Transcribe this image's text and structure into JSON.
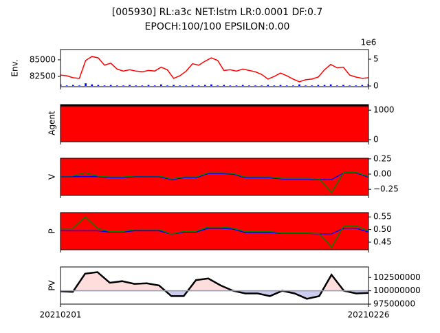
{
  "title": [
    "[005930] RL:a3c NET:lstm LR:0.0001 DF:0.7",
    "EPOCH:100/100 EPSILON:0.00"
  ],
  "chart_data": [
    {
      "type": "line",
      "ylabel": "Env.",
      "ytick_side": "left",
      "ylim": [
        80950,
        86550
      ],
      "yticks": [
        82500,
        85000
      ],
      "y2lim": [
        -0.13,
        6.8
      ],
      "y2ticks": [
        0,
        5
      ],
      "y2_offset_label": "1e6",
      "series": [
        {
          "name": "close",
          "kind": "line",
          "color": "#ff0000",
          "values": [
            82700,
            82600,
            82300,
            82200,
            84900,
            85500,
            85300,
            84200,
            84500,
            83600,
            83300,
            83500,
            83300,
            83200,
            83400,
            83300,
            83900,
            83500,
            82200,
            82600,
            83300,
            84400,
            84200,
            84800,
            85300,
            84900,
            83400,
            83500,
            83300,
            83600,
            83400,
            83200,
            82800,
            82100,
            82500,
            83000,
            82600,
            82100,
            81700,
            82000,
            82100,
            82400,
            83500,
            84300,
            83800,
            83900,
            82700,
            82400,
            82200,
            82300
          ]
        },
        {
          "name": "volume",
          "kind": "bar",
          "axis": "y2",
          "color": "#0000ff",
          "values": [
            0.3,
            0.1,
            0.2,
            0.1,
            0.5,
            0.3,
            0.2,
            0.1,
            0.2,
            0.1,
            0.1,
            0.2,
            0.1,
            0.1,
            0.2,
            0.1,
            0.3,
            0.1,
            0.2,
            0.1,
            0.1,
            0.2,
            0.1,
            0.2,
            0.3,
            0.1,
            0.2,
            0.1,
            0.1,
            0.2,
            0.1,
            0.1,
            0.1,
            0.2,
            0.1,
            0.2,
            0.1,
            0.1,
            0.3,
            0.1,
            0.1,
            0.2,
            0.2,
            0.3,
            0.1,
            0.2,
            0.1,
            0.1,
            0.2,
            0.4
          ]
        }
      ]
    },
    {
      "type": "line",
      "ylabel": "Agent",
      "ytick_side": "right",
      "ylim": [
        -70,
        1190
      ],
      "yticks": [
        0,
        1000
      ],
      "series": [
        {
          "name": "agent",
          "kind": "area",
          "color": "#ff0000",
          "edge_color": "#000000",
          "values": [
            1175,
            1175,
            1175,
            1175,
            1175
          ]
        }
      ]
    },
    {
      "type": "line",
      "ylabel": "V",
      "ytick_side": "right",
      "facecolor": "#ff0000",
      "ylim": [
        -0.35,
        0.26
      ],
      "yticks": [
        {
          "value": 0.25,
          "label": "0.25"
        },
        {
          "value": 0,
          "label": "0.00"
        },
        {
          "value": -0.25,
          "label": "−0.25"
        }
      ],
      "series": [
        {
          "name": "v_blue",
          "kind": "line",
          "color": "#0000ff",
          "values": [
            -0.04,
            -0.04,
            -0.04,
            -0.04,
            -0.06,
            -0.06,
            -0.04,
            -0.04,
            -0.04,
            -0.09,
            -0.06,
            -0.06,
            0.01,
            0.01,
            0.0,
            -0.06,
            -0.06,
            -0.06,
            -0.08,
            -0.08,
            -0.08,
            -0.09,
            -0.09,
            0.02,
            0.02,
            -0.05
          ]
        },
        {
          "name": "v_green",
          "kind": "line",
          "color": "#008000",
          "values": [
            -0.03,
            -0.03,
            0.02,
            -0.03,
            -0.05,
            -0.05,
            -0.03,
            -0.03,
            -0.03,
            -0.08,
            -0.05,
            -0.05,
            0.02,
            0.02,
            0.01,
            -0.05,
            -0.05,
            -0.05,
            -0.07,
            -0.07,
            -0.07,
            -0.08,
            -0.3,
            0.03,
            0.03,
            -0.04
          ]
        }
      ]
    },
    {
      "type": "line",
      "ylabel": "P",
      "ytick_side": "right",
      "facecolor": "#ff0000",
      "ylim": [
        0.42,
        0.567
      ],
      "yticks": [
        0.55,
        {
          "value": 0.5,
          "label": "0.50"
        },
        0.45
      ],
      "series": [
        {
          "name": "p_blue",
          "kind": "line",
          "color": "#0000ff",
          "values": [
            0.495,
            0.495,
            0.495,
            0.495,
            0.49,
            0.49,
            0.495,
            0.495,
            0.495,
            0.482,
            0.49,
            0.49,
            0.505,
            0.505,
            0.502,
            0.488,
            0.488,
            0.488,
            0.485,
            0.485,
            0.485,
            0.483,
            0.483,
            0.505,
            0.505,
            0.49
          ]
        },
        {
          "name": "p_green",
          "kind": "line",
          "color": "#008000",
          "values": [
            0.505,
            0.505,
            0.55,
            0.505,
            0.492,
            0.492,
            0.5,
            0.5,
            0.5,
            0.482,
            0.493,
            0.493,
            0.51,
            0.51,
            0.505,
            0.492,
            0.492,
            0.492,
            0.486,
            0.486,
            0.486,
            0.484,
            0.43,
            0.515,
            0.515,
            0.495
          ]
        }
      ]
    },
    {
      "type": "line",
      "ylabel": "PV",
      "ytick_side": "right",
      "ylim": [
        97500000,
        104470000
      ],
      "yticks": [
        97500000,
        100000000,
        102500000
      ],
      "hline": 100000000,
      "hline_color": "#9999aa",
      "xticks": [
        "20210201",
        "20210226"
      ],
      "series": [
        {
          "name": "pv",
          "kind": "line",
          "color": "#000000",
          "fill_above": "#ffdddd",
          "fill_below": "#ccccee",
          "values": [
            99900000,
            99800000,
            103200000,
            103500000,
            101500000,
            101800000,
            101300000,
            101400000,
            101000000,
            99000000,
            99000000,
            102000000,
            102300000,
            101000000,
            100000000,
            99500000,
            99500000,
            99000000,
            100000000,
            99500000,
            98500000,
            99000000,
            103000000,
            100000000,
            99500000,
            99600000
          ]
        }
      ]
    }
  ]
}
